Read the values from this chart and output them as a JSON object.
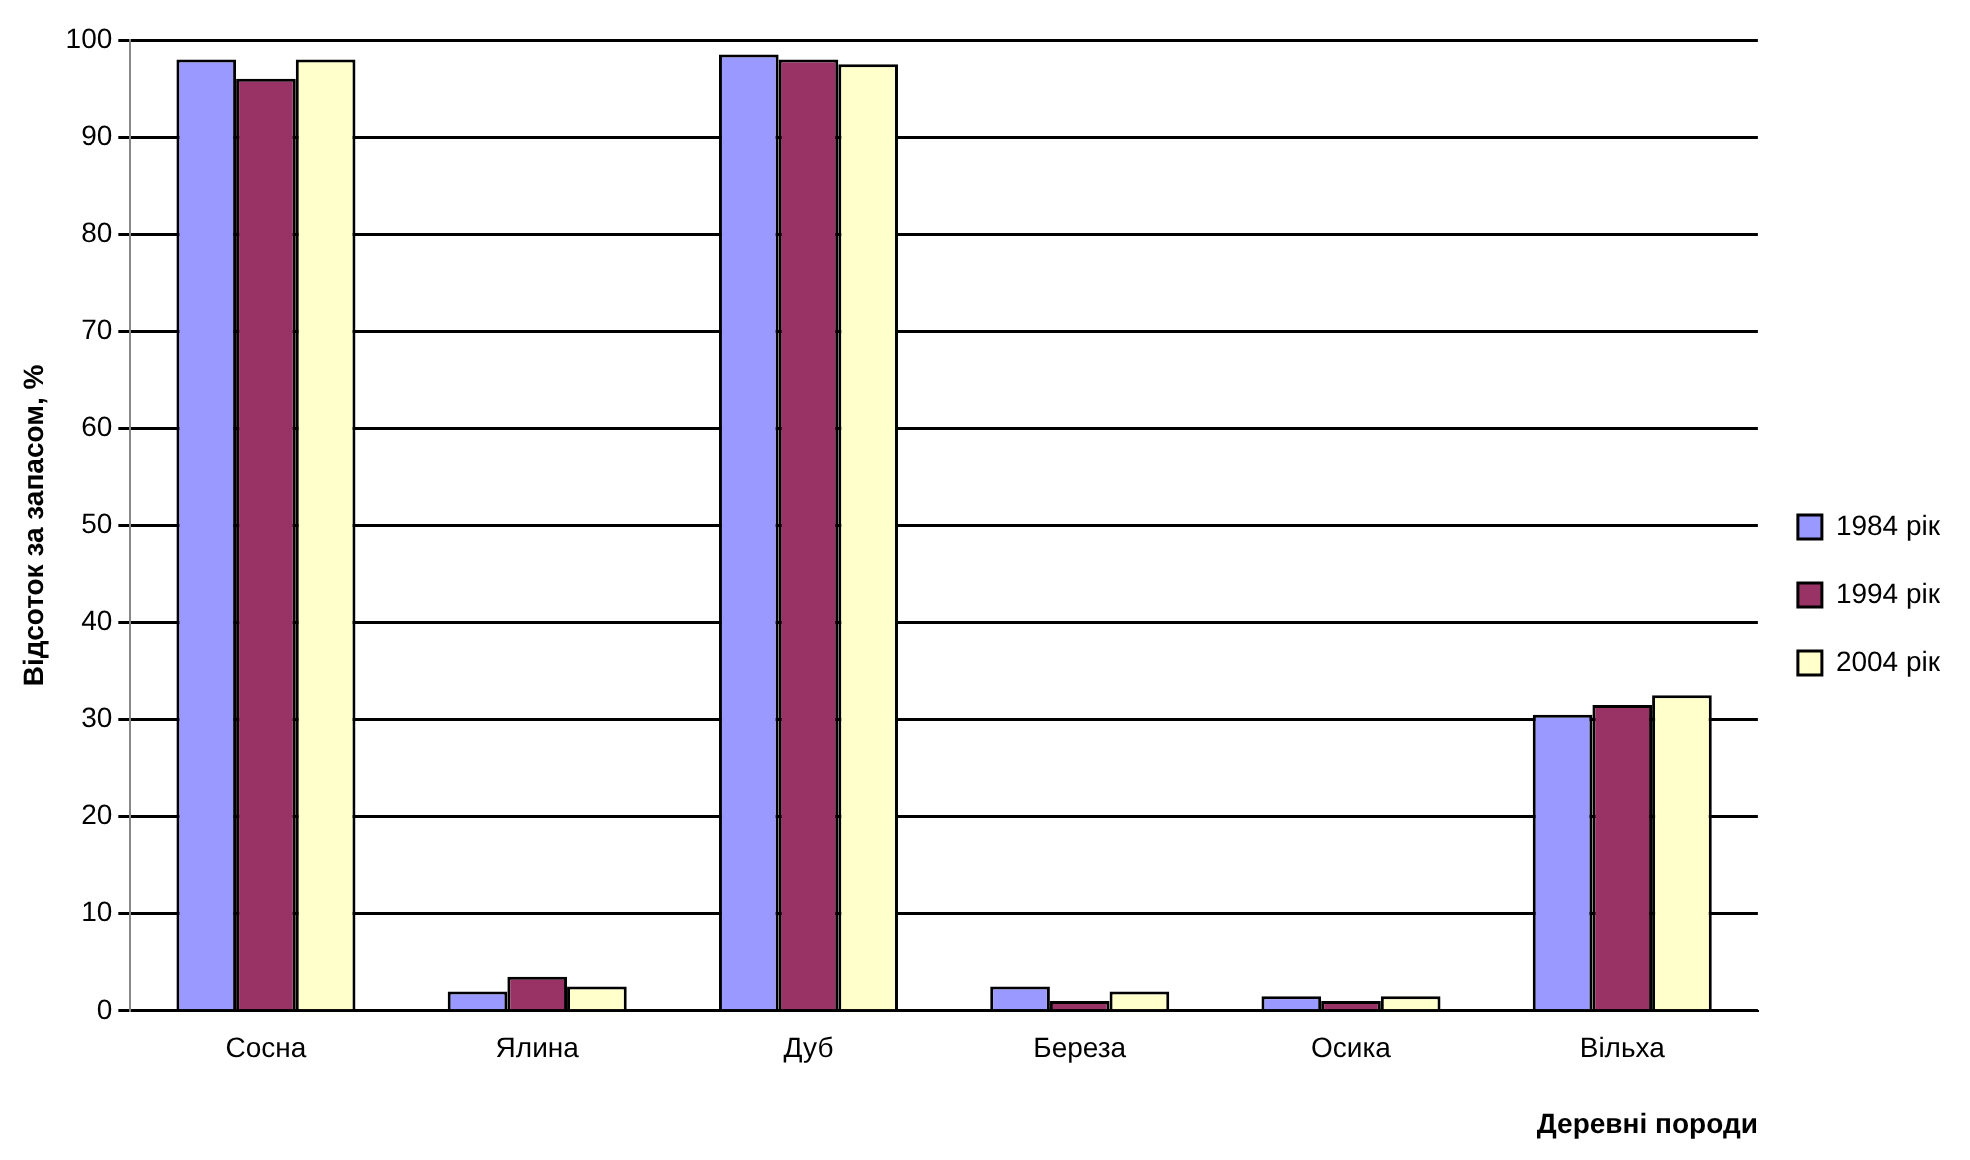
{
  "chart_data": {
    "type": "bar",
    "xlabel": "Деревні породи",
    "ylabel": "Відсоток за запасом, %",
    "categories": [
      "Сосна",
      "Ялина",
      "Дуб",
      "Береза",
      "Осика",
      "Вільха"
    ],
    "series": [
      {
        "name": "1984 рік",
        "color": "#9999ff",
        "values": [
          98,
          2,
          98.5,
          2.5,
          1.5,
          30.5
        ]
      },
      {
        "name": "1994 рік",
        "color": "#993366",
        "values": [
          96,
          3.5,
          98,
          1,
          1,
          31.5
        ]
      },
      {
        "name": "2004 рік",
        "color": "#ffffcc",
        "values": [
          98,
          2.5,
          97.5,
          2,
          1.5,
          32.5
        ]
      }
    ],
    "ylim": [
      0,
      100
    ],
    "yticks": [
      0,
      10,
      20,
      30,
      40,
      50,
      60,
      70,
      80,
      90,
      100
    ],
    "grid": "y",
    "legend": "right"
  }
}
